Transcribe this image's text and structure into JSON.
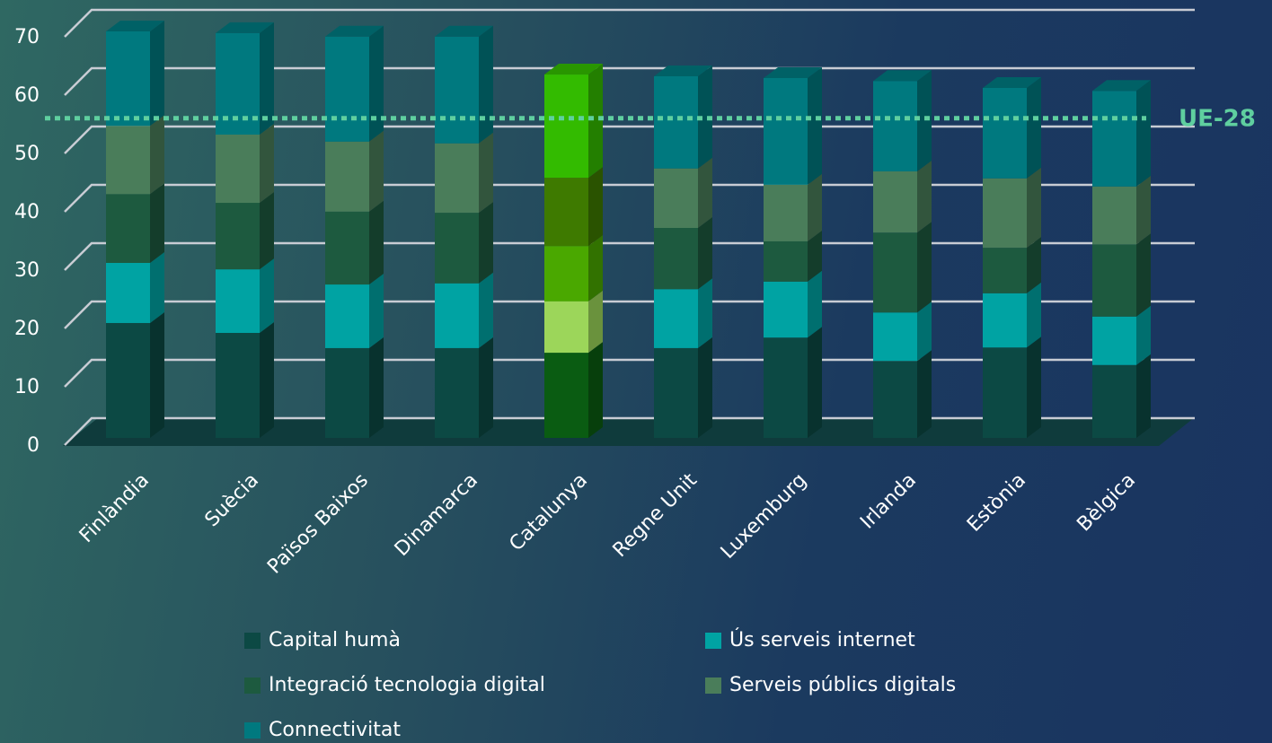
{
  "chart_data": {
    "type": "stacked_bar_3d",
    "categories": [
      "Finlàndia",
      "Suècia",
      "Països Baixos",
      "Dinamarca",
      "Catalunya",
      "Regne Unit",
      "Luxemburg",
      "Irlanda",
      "Estònia",
      "Bèlgica"
    ],
    "series": [
      {
        "name": "Capital humà",
        "color": "#0c4944",
        "highlight_color": "#0a5c12",
        "values": [
          19.7,
          18.0,
          15.4,
          15.4,
          14.6,
          15.4,
          17.2,
          13.2,
          15.5,
          12.5
        ]
      },
      {
        "name": "Ús serveis internet",
        "color": "#00a3a3",
        "highlight_color": "#9cd65a",
        "values": [
          10.3,
          10.9,
          10.9,
          11.1,
          8.8,
          10.1,
          9.6,
          8.3,
          9.3,
          8.3
        ]
      },
      {
        "name": "Integració tecnologia digital",
        "color": "#1d5a3f",
        "highlight_color": "#4aa800",
        "values": [
          11.8,
          11.4,
          12.5,
          12.1,
          9.5,
          10.5,
          6.9,
          13.7,
          7.8,
          12.4
        ]
      },
      {
        "name": "Serveis públics digitals",
        "color": "#4a7d5a",
        "highlight_color": "#3e7a00",
        "values": [
          11.7,
          11.7,
          12.0,
          11.9,
          11.7,
          10.2,
          9.7,
          10.5,
          11.9,
          9.9
        ]
      },
      {
        "name": "Connectivitat",
        "color": "#00797f",
        "highlight_color": "#33bb00",
        "values": [
          16.2,
          17.4,
          18.0,
          18.3,
          17.7,
          15.8,
          18.3,
          15.5,
          15.5,
          16.4
        ]
      }
    ],
    "highlight_category": "Catalunya",
    "reference_line": {
      "label": "UE-28",
      "value": 54.8,
      "color": "#5fcf9f"
    },
    "ylim": [
      0,
      70
    ],
    "yticks": [
      0,
      10,
      20,
      30,
      40,
      50,
      60,
      70
    ],
    "grid": true,
    "legend": "bottom"
  }
}
